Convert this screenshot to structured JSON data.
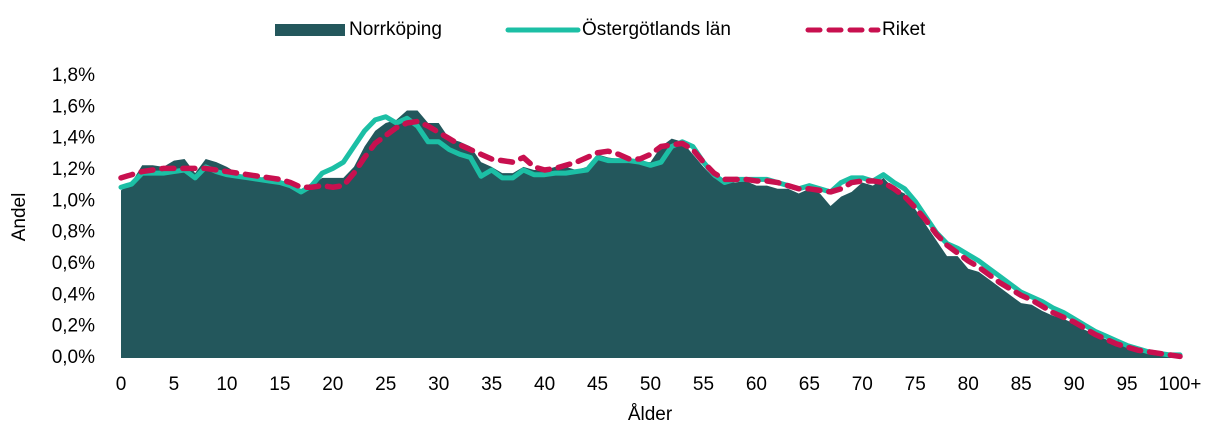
{
  "chart_data": {
    "type": "line",
    "ylabel": "Andel",
    "xlabel": "Ålder",
    "categories": [
      "0",
      null,
      null,
      null,
      null,
      "5",
      null,
      null,
      null,
      null,
      "10",
      null,
      null,
      null,
      null,
      "15",
      null,
      null,
      null,
      null,
      "20",
      null,
      null,
      null,
      null,
      "25",
      null,
      null,
      null,
      null,
      "30",
      null,
      null,
      null,
      null,
      "35",
      null,
      null,
      null,
      null,
      "40",
      null,
      null,
      null,
      null,
      "45",
      null,
      null,
      null,
      null,
      "50",
      null,
      null,
      null,
      null,
      "55",
      null,
      null,
      null,
      null,
      "60",
      null,
      null,
      null,
      null,
      "65",
      null,
      null,
      null,
      null,
      "70",
      null,
      null,
      null,
      null,
      "75",
      null,
      null,
      null,
      null,
      "80",
      null,
      null,
      null,
      null,
      "85",
      null,
      null,
      null,
      null,
      "90",
      null,
      null,
      null,
      null,
      "95",
      null,
      null,
      null,
      null,
      "100+"
    ],
    "ylim": [
      0,
      1.8
    ],
    "yticks": [
      {
        "value": 0,
        "label": "0,0%"
      },
      {
        "value": 0.2,
        "label": "0,2%"
      },
      {
        "value": 0.4,
        "label": "0,4%"
      },
      {
        "value": 0.6,
        "label": "0,6%"
      },
      {
        "value": 0.8,
        "label": "0,8%"
      },
      {
        "value": 1.0,
        "label": "1,0%"
      },
      {
        "value": 1.2,
        "label": "1,2%"
      },
      {
        "value": 1.4,
        "label": "1,4%"
      },
      {
        "value": 1.6,
        "label": "1,6%"
      },
      {
        "value": 1.8,
        "label": "1,8%"
      }
    ],
    "legend": "top",
    "series": [
      {
        "name": "Norrköping",
        "type": "area",
        "color": "#23575c",
        "values": [
          1.07,
          1.12,
          1.23,
          1.23,
          1.22,
          1.26,
          1.27,
          1.18,
          1.27,
          1.25,
          1.22,
          1.18,
          1.15,
          1.15,
          1.16,
          1.13,
          1.1,
          1.06,
          1.1,
          1.15,
          1.15,
          1.15,
          1.22,
          1.35,
          1.45,
          1.5,
          1.52,
          1.58,
          1.58,
          1.5,
          1.5,
          1.4,
          1.38,
          1.35,
          1.25,
          1.22,
          1.18,
          1.18,
          1.22,
          1.2,
          1.2,
          1.22,
          1.22,
          1.2,
          1.22,
          1.3,
          1.28,
          1.27,
          1.27,
          1.25,
          1.25,
          1.35,
          1.4,
          1.38,
          1.3,
          1.22,
          1.15,
          1.12,
          1.12,
          1.13,
          1.1,
          1.1,
          1.08,
          1.08,
          1.05,
          1.08,
          1.05,
          0.97,
          1.03,
          1.06,
          1.12,
          1.1,
          1.15,
          1.08,
          1.05,
          0.95,
          0.85,
          0.75,
          0.65,
          0.65,
          0.57,
          0.55,
          0.5,
          0.45,
          0.4,
          0.35,
          0.34,
          0.3,
          0.27,
          0.25,
          0.22,
          0.18,
          0.15,
          0.12,
          0.09,
          0.07,
          0.05,
          0.04,
          0.02,
          0.01,
          0.02
        ]
      },
      {
        "name": "Östergötlands län",
        "type": "line",
        "dash": false,
        "color": "#1cbfa5",
        "values": [
          1.09,
          1.11,
          1.18,
          1.18,
          1.18,
          1.19,
          1.2,
          1.15,
          1.22,
          1.19,
          1.17,
          1.16,
          1.15,
          1.14,
          1.13,
          1.12,
          1.1,
          1.06,
          1.1,
          1.18,
          1.21,
          1.25,
          1.35,
          1.45,
          1.52,
          1.54,
          1.5,
          1.53,
          1.48,
          1.38,
          1.38,
          1.33,
          1.3,
          1.28,
          1.16,
          1.2,
          1.15,
          1.15,
          1.2,
          1.17,
          1.17,
          1.18,
          1.18,
          1.19,
          1.2,
          1.28,
          1.26,
          1.26,
          1.26,
          1.25,
          1.23,
          1.25,
          1.35,
          1.38,
          1.35,
          1.25,
          1.17,
          1.12,
          1.14,
          1.14,
          1.14,
          1.14,
          1.12,
          1.1,
          1.08,
          1.1,
          1.08,
          1.06,
          1.12,
          1.15,
          1.15,
          1.13,
          1.17,
          1.12,
          1.08,
          1.0,
          0.9,
          0.8,
          0.73,
          0.7,
          0.66,
          0.62,
          0.57,
          0.52,
          0.47,
          0.42,
          0.39,
          0.36,
          0.32,
          0.29,
          0.25,
          0.21,
          0.17,
          0.14,
          0.11,
          0.08,
          0.06,
          0.04,
          0.03,
          0.02,
          0.02
        ]
      },
      {
        "name": "Riket",
        "type": "line",
        "dash": true,
        "color": "#c8104f",
        "values": [
          1.15,
          1.17,
          1.19,
          1.2,
          1.21,
          1.21,
          1.21,
          1.21,
          1.21,
          1.2,
          1.19,
          1.18,
          1.17,
          1.16,
          1.15,
          1.14,
          1.12,
          1.09,
          1.09,
          1.1,
          1.09,
          1.1,
          1.18,
          1.28,
          1.37,
          1.42,
          1.47,
          1.5,
          1.51,
          1.48,
          1.44,
          1.4,
          1.36,
          1.33,
          1.3,
          1.27,
          1.26,
          1.25,
          1.28,
          1.22,
          1.2,
          1.21,
          1.23,
          1.25,
          1.28,
          1.31,
          1.32,
          1.3,
          1.27,
          1.27,
          1.3,
          1.35,
          1.36,
          1.37,
          1.33,
          1.25,
          1.18,
          1.14,
          1.14,
          1.14,
          1.13,
          1.13,
          1.12,
          1.1,
          1.08,
          1.08,
          1.07,
          1.06,
          1.08,
          1.12,
          1.13,
          1.13,
          1.12,
          1.08,
          1.03,
          0.96,
          0.88,
          0.79,
          0.72,
          0.67,
          0.62,
          0.58,
          0.53,
          0.48,
          0.44,
          0.4,
          0.37,
          0.33,
          0.29,
          0.26,
          0.23,
          0.19,
          0.15,
          0.12,
          0.09,
          0.07,
          0.05,
          0.04,
          0.03,
          0.02,
          0.01
        ]
      }
    ]
  }
}
